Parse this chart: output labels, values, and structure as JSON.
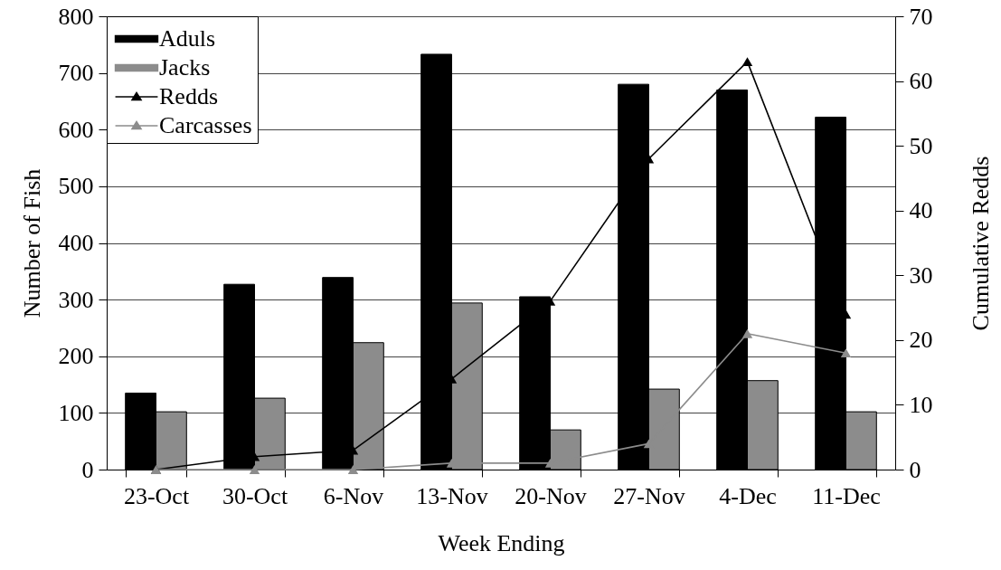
{
  "chart_data": {
    "type": "bar",
    "xlabel": "Week Ending",
    "ylabel": "Number of Fish",
    "y2label": "Cumulative Redds",
    "categories": [
      "23-Oct",
      "30-Oct",
      "6-Nov",
      "13-Nov",
      "20-Nov",
      "27-Nov",
      "4-Dec",
      "11-Dec"
    ],
    "series": [
      {
        "name": "Aduls",
        "color": "#000000",
        "values": [
          135,
          327,
          339,
          733,
          305,
          680,
          670,
          622
        ]
      },
      {
        "name": "Jacks",
        "color": "#8c8c8c",
        "values": [
          102,
          126,
          224,
          294,
          70,
          142,
          157,
          102
        ]
      },
      {
        "name": "Redds",
        "type": "line",
        "axis": "y2",
        "color": "#000000",
        "values": [
          0,
          2,
          3,
          14,
          26,
          48,
          63,
          24
        ]
      },
      {
        "name": "Carcasses",
        "type": "line",
        "axis": "y2",
        "color": "#8c8c8c",
        "values": [
          0,
          0,
          0,
          1,
          1,
          4,
          21,
          18
        ]
      }
    ],
    "ylim": [
      0,
      800
    ],
    "yticks": [
      0,
      100,
      200,
      300,
      400,
      500,
      600,
      700,
      800
    ],
    "y2lim": [
      0,
      70
    ],
    "y2ticks": [
      0,
      10,
      20,
      30,
      40,
      50,
      60,
      70
    ],
    "grid": "y",
    "legend": "top left",
    "marker": "triangle",
    "line_style": "solid"
  }
}
